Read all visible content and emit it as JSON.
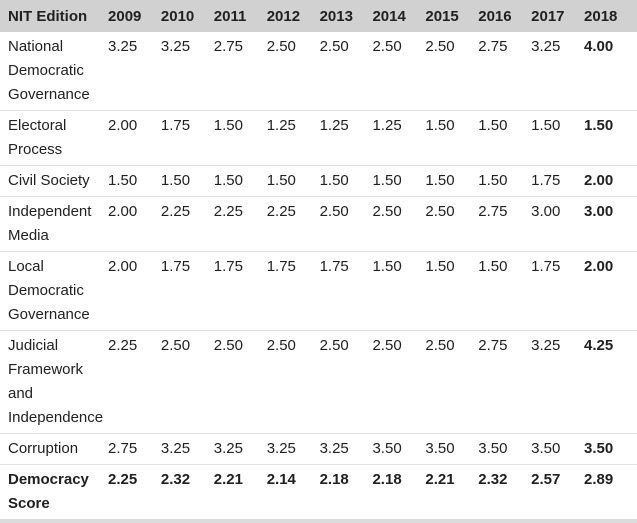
{
  "table": {
    "corner_label": "NIT Edition",
    "years": [
      "2009",
      "2010",
      "2011",
      "2012",
      "2013",
      "2014",
      "2015",
      "2016",
      "2017",
      "2018"
    ],
    "rows": [
      {
        "label": "National Democratic Governance",
        "values": [
          "3.25",
          "3.25",
          "2.75",
          "2.50",
          "2.50",
          "2.50",
          "2.50",
          "2.75",
          "3.25",
          "4.00"
        ],
        "bold_row": false
      },
      {
        "label": "Electoral Process",
        "values": [
          "2.00",
          "1.75",
          "1.50",
          "1.25",
          "1.25",
          "1.25",
          "1.50",
          "1.50",
          "1.50",
          "1.50"
        ],
        "bold_row": false
      },
      {
        "label": "Civil Society",
        "values": [
          "1.50",
          "1.50",
          "1.50",
          "1.50",
          "1.50",
          "1.50",
          "1.50",
          "1.50",
          "1.75",
          "2.00"
        ],
        "bold_row": false
      },
      {
        "label": "Independent Media",
        "values": [
          "2.00",
          "2.25",
          "2.25",
          "2.25",
          "2.50",
          "2.50",
          "2.50",
          "2.75",
          "3.00",
          "3.00"
        ],
        "bold_row": false
      },
      {
        "label": "Local Democratic Governance",
        "values": [
          "2.00",
          "1.75",
          "1.75",
          "1.75",
          "1.75",
          "1.50",
          "1.50",
          "1.50",
          "1.75",
          "2.00"
        ],
        "bold_row": false
      },
      {
        "label": "Judicial Framework and Independence",
        "values": [
          "2.25",
          "2.50",
          "2.50",
          "2.50",
          "2.50",
          "2.50",
          "2.50",
          "2.75",
          "3.25",
          "4.25"
        ],
        "bold_row": false
      },
      {
        "label": "Corruption",
        "values": [
          "2.75",
          "3.25",
          "3.25",
          "3.25",
          "3.25",
          "3.50",
          "3.50",
          "3.50",
          "3.50",
          "3.50"
        ],
        "bold_row": false
      },
      {
        "label": "Democracy Score",
        "values": [
          "2.25",
          "2.32",
          "2.21",
          "2.14",
          "2.18",
          "2.18",
          "2.21",
          "2.32",
          "2.57",
          "2.89"
        ],
        "bold_row": true
      }
    ]
  },
  "styles": {
    "header_bg": "#d1d1d1",
    "row_border": "#e0e0e0",
    "text_color": "#212121",
    "bottom_bar": "#dcdcdc"
  },
  "chart_data": {
    "type": "table",
    "title": "NIT Edition scores by year",
    "categories": [
      "2009",
      "2010",
      "2011",
      "2012",
      "2013",
      "2014",
      "2015",
      "2016",
      "2017",
      "2018"
    ],
    "series": [
      {
        "name": "National Democratic Governance",
        "values": [
          3.25,
          3.25,
          2.75,
          2.5,
          2.5,
          2.5,
          2.5,
          2.75,
          3.25,
          4.0
        ]
      },
      {
        "name": "Electoral Process",
        "values": [
          2.0,
          1.75,
          1.5,
          1.25,
          1.25,
          1.25,
          1.5,
          1.5,
          1.5,
          1.5
        ]
      },
      {
        "name": "Civil Society",
        "values": [
          1.5,
          1.5,
          1.5,
          1.5,
          1.5,
          1.5,
          1.5,
          1.5,
          1.75,
          2.0
        ]
      },
      {
        "name": "Independent Media",
        "values": [
          2.0,
          2.25,
          2.25,
          2.25,
          2.5,
          2.5,
          2.5,
          2.75,
          3.0,
          3.0
        ]
      },
      {
        "name": "Local Democratic Governance",
        "values": [
          2.0,
          1.75,
          1.75,
          1.75,
          1.75,
          1.5,
          1.5,
          1.5,
          1.75,
          2.0
        ]
      },
      {
        "name": "Judicial Framework and Independence",
        "values": [
          2.25,
          2.5,
          2.5,
          2.5,
          2.5,
          2.5,
          2.5,
          2.75,
          3.25,
          4.25
        ]
      },
      {
        "name": "Corruption",
        "values": [
          2.75,
          3.25,
          3.25,
          3.25,
          3.25,
          3.5,
          3.5,
          3.5,
          3.5,
          3.5
        ]
      },
      {
        "name": "Democracy Score",
        "values": [
          2.25,
          2.32,
          2.21,
          2.14,
          2.18,
          2.18,
          2.21,
          2.32,
          2.57,
          2.89
        ]
      }
    ],
    "layout": {
      "first_column_header": "NIT Edition",
      "header_background": "#d1d1d1",
      "bold_last_column": true,
      "bold_summary_row": "Democracy Score"
    }
  }
}
